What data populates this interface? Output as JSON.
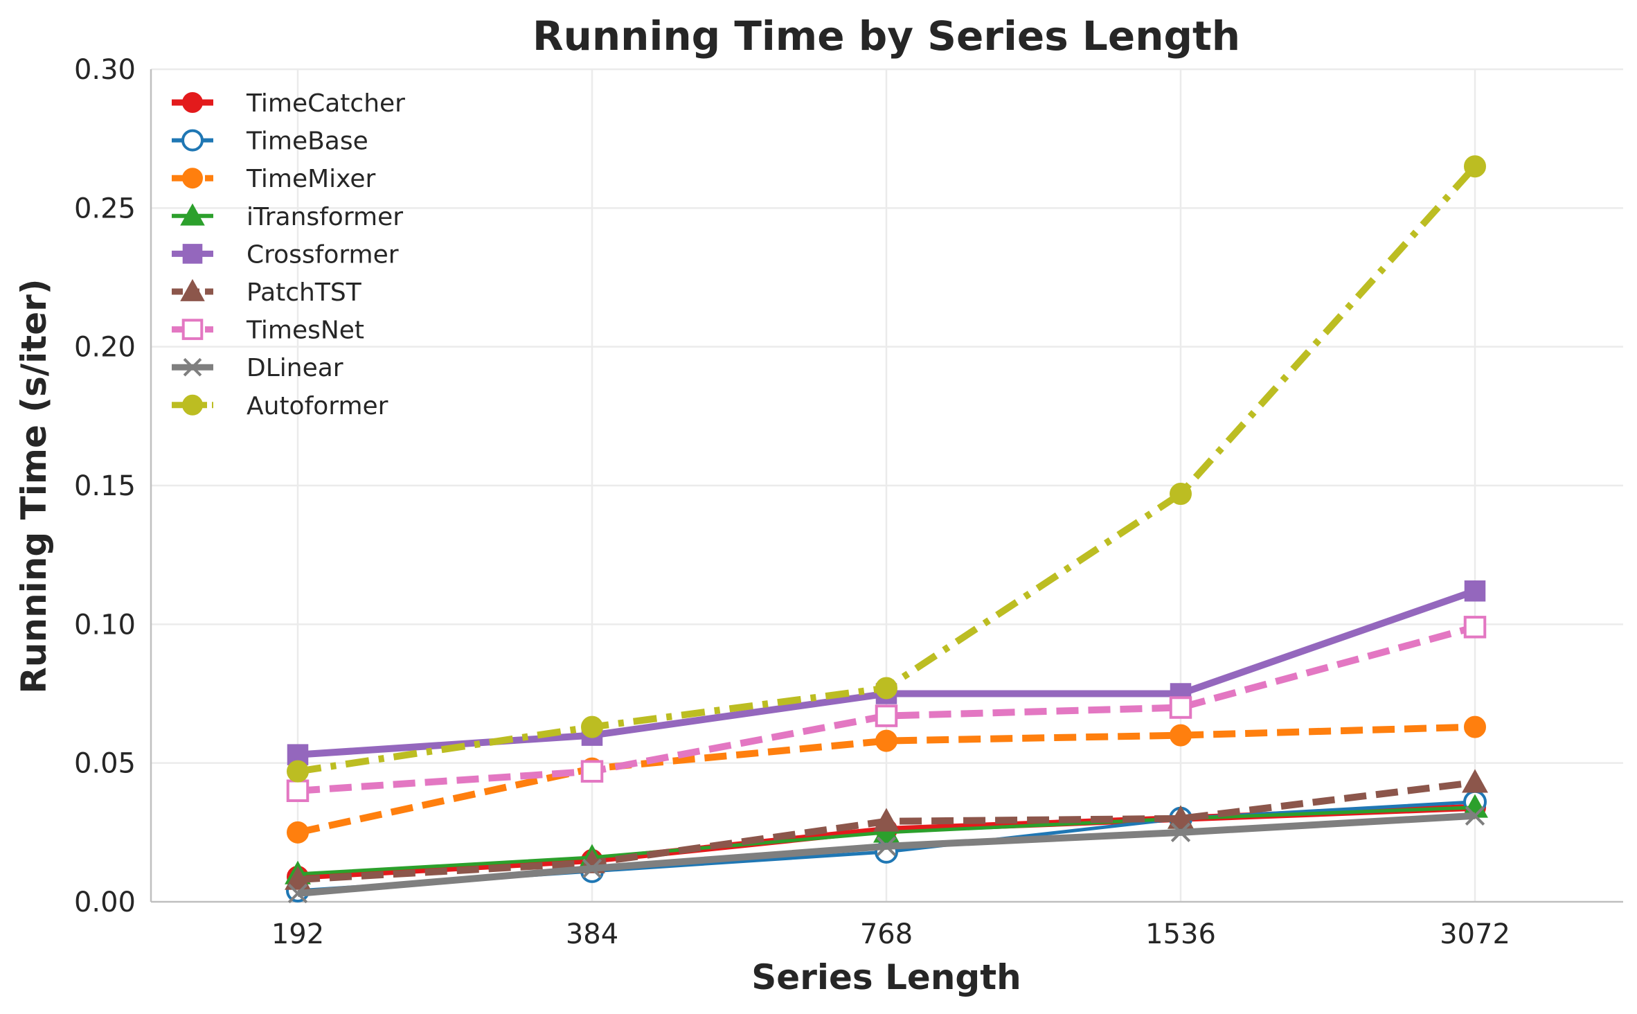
{
  "chart_data": {
    "type": "line",
    "title": "Running Time by Series Length",
    "xlabel": "Series Length",
    "ylabel": "Running Time (s/iter)",
    "categories": [
      "192",
      "384",
      "768",
      "1536",
      "3072"
    ],
    "yticks": [
      "0.00",
      "0.05",
      "0.10",
      "0.15",
      "0.20",
      "0.25",
      "0.30"
    ],
    "ylim": [
      0,
      0.3
    ],
    "grid": true,
    "legend_position": "top-left",
    "series": [
      {
        "name": "TimeCatcher",
        "color": "#e31a1c",
        "marker": "circle",
        "fill": "filled",
        "dash": "solid",
        "weight": "bold",
        "values": [
          0.009,
          0.015,
          0.026,
          0.03,
          0.034
        ]
      },
      {
        "name": "TimeBase",
        "color": "#1f77b4",
        "marker": "circle",
        "fill": "open",
        "dash": "solid",
        "weight": "thin",
        "values": [
          0.004,
          0.011,
          0.018,
          0.03,
          0.036
        ]
      },
      {
        "name": "TimeMixer",
        "color": "#ff7f0e",
        "marker": "circle",
        "fill": "filled",
        "dash": "dashed",
        "weight": "bold",
        "values": [
          0.025,
          0.048,
          0.058,
          0.06,
          0.063
        ]
      },
      {
        "name": "iTransformer",
        "color": "#2ca02c",
        "marker": "triangle",
        "fill": "filled",
        "dash": "solid",
        "weight": "thin",
        "values": [
          0.01,
          0.016,
          0.025,
          0.03,
          0.034
        ]
      },
      {
        "name": "Crossformer",
        "color": "#9467bd",
        "marker": "square",
        "fill": "filled",
        "dash": "solid",
        "weight": "bold",
        "values": [
          0.053,
          0.06,
          0.075,
          0.075,
          0.112
        ]
      },
      {
        "name": "PatchTST",
        "color": "#8c564b",
        "marker": "triangle",
        "fill": "filled",
        "dash": "dashed",
        "weight": "bold",
        "values": [
          0.008,
          0.014,
          0.029,
          0.03,
          0.043
        ]
      },
      {
        "name": "TimesNet",
        "color": "#e377c2",
        "marker": "square",
        "fill": "open",
        "dash": "dashed",
        "weight": "bold",
        "values": [
          0.04,
          0.047,
          0.067,
          0.07,
          0.099
        ]
      },
      {
        "name": "DLinear",
        "color": "#7f7f7f",
        "marker": "x",
        "fill": "filled",
        "dash": "solid",
        "weight": "bold",
        "values": [
          0.003,
          0.012,
          0.02,
          0.025,
          0.031
        ]
      },
      {
        "name": "Autoformer",
        "color": "#bcbd22",
        "marker": "circle",
        "fill": "filled",
        "dash": "dashdot",
        "weight": "bold",
        "values": [
          0.047,
          0.063,
          0.077,
          0.147,
          0.265
        ]
      }
    ]
  }
}
